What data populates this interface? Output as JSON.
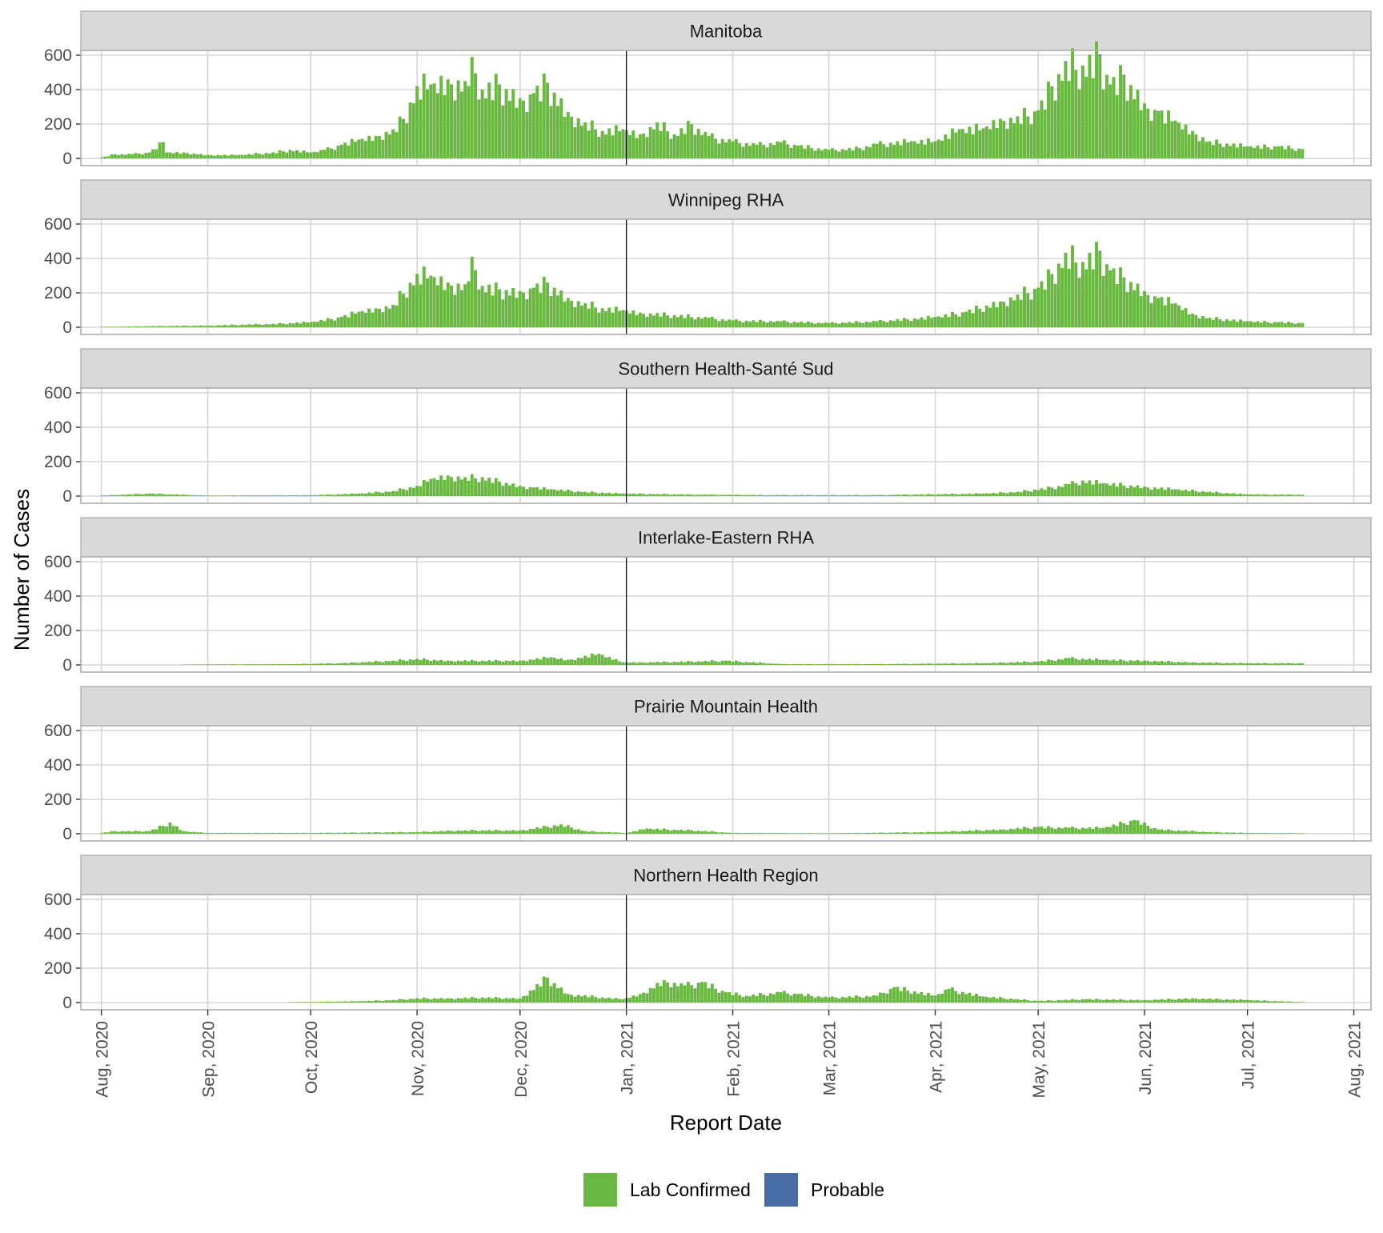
{
  "chart_data": {
    "type": "bar",
    "stacked": true,
    "xlabel": "Report Date",
    "ylabel": "Number of Cases",
    "ylim": [
      0,
      600
    ],
    "yticks": [
      0,
      200,
      400,
      600
    ],
    "x_range": [
      "2020-07-26",
      "2021-08-06"
    ],
    "x_ticks": [
      {
        "date": "2020-08-01",
        "label": "Aug, 2020"
      },
      {
        "date": "2020-09-01",
        "label": "Sep, 2020"
      },
      {
        "date": "2020-10-01",
        "label": "Oct, 2020"
      },
      {
        "date": "2020-11-01",
        "label": "Nov, 2020"
      },
      {
        "date": "2020-12-01",
        "label": "Dec, 2020"
      },
      {
        "date": "2021-01-01",
        "label": "Jan, 2021"
      },
      {
        "date": "2021-02-01",
        "label": "Feb, 2021"
      },
      {
        "date": "2021-03-01",
        "label": "Mar, 2021"
      },
      {
        "date": "2021-04-01",
        "label": "Apr, 2021"
      },
      {
        "date": "2021-05-01",
        "label": "May, 2021"
      },
      {
        "date": "2021-06-01",
        "label": "Jun, 2021"
      },
      {
        "date": "2021-07-01",
        "label": "Jul, 2021"
      },
      {
        "date": "2021-08-01",
        "label": "Aug, 2021"
      }
    ],
    "reference_line": "2021-01-01",
    "grid": true,
    "legend_position": "bottom",
    "series_styles": [
      {
        "name": "Lab Confirmed",
        "color": "#6ab842"
      },
      {
        "name": "Probable",
        "color": "#4a6da7"
      }
    ],
    "panels": [
      {
        "title": "Manitoba",
        "lab_confirmed": [
          [
            "2020-08-01",
            5
          ],
          [
            "2020-08-05",
            25
          ],
          [
            "2020-08-10",
            25
          ],
          [
            "2020-08-15",
            35
          ],
          [
            "2020-08-19",
            95
          ],
          [
            "2020-08-20",
            35
          ],
          [
            "2020-08-25",
            35
          ],
          [
            "2020-09-01",
            20
          ],
          [
            "2020-09-10",
            20
          ],
          [
            "2020-09-20",
            35
          ],
          [
            "2020-09-25",
            50
          ],
          [
            "2020-10-01",
            35
          ],
          [
            "2020-10-05",
            50
          ],
          [
            "2020-10-10",
            80
          ],
          [
            "2020-10-15",
            110
          ],
          [
            "2020-10-20",
            130
          ],
          [
            "2020-10-25",
            170
          ],
          [
            "2020-10-28",
            230
          ],
          [
            "2020-11-01",
            420
          ],
          [
            "2020-11-05",
            430
          ],
          [
            "2020-11-10",
            460
          ],
          [
            "2020-11-15",
            450
          ],
          [
            "2020-11-17",
            590
          ],
          [
            "2020-11-20",
            400
          ],
          [
            "2020-11-25",
            430
          ],
          [
            "2020-12-01",
            350
          ],
          [
            "2020-12-05",
            380
          ],
          [
            "2020-12-09",
            440
          ],
          [
            "2020-12-15",
            270
          ],
          [
            "2020-12-20",
            210
          ],
          [
            "2020-12-25",
            160
          ],
          [
            "2020-12-31",
            170
          ],
          [
            "2021-01-05",
            140
          ],
          [
            "2021-01-10",
            210
          ],
          [
            "2021-01-15",
            140
          ],
          [
            "2021-01-20",
            200
          ],
          [
            "2021-01-25",
            130
          ],
          [
            "2021-02-01",
            100
          ],
          [
            "2021-02-08",
            80
          ],
          [
            "2021-02-15",
            95
          ],
          [
            "2021-02-20",
            75
          ],
          [
            "2021-03-01",
            50
          ],
          [
            "2021-03-10",
            60
          ],
          [
            "2021-03-15",
            85
          ],
          [
            "2021-03-25",
            100
          ],
          [
            "2021-04-01",
            100
          ],
          [
            "2021-04-08",
            170
          ],
          [
            "2021-04-15",
            175
          ],
          [
            "2021-04-20",
            230
          ],
          [
            "2021-04-25",
            240
          ],
          [
            "2021-05-01",
            280
          ],
          [
            "2021-05-05",
            420
          ],
          [
            "2021-05-09",
            560
          ],
          [
            "2021-05-14",
            540
          ],
          [
            "2021-05-19",
            598
          ],
          [
            "2021-05-22",
            430
          ],
          [
            "2021-05-26",
            480
          ],
          [
            "2021-06-01",
            320
          ],
          [
            "2021-06-05",
            270
          ],
          [
            "2021-06-10",
            220
          ],
          [
            "2021-06-15",
            160
          ],
          [
            "2021-06-20",
            100
          ],
          [
            "2021-07-01",
            70
          ],
          [
            "2021-07-10",
            70
          ],
          [
            "2021-07-17",
            55
          ]
        ],
        "probable": [
          [
            "2021-05-19",
            6
          ],
          [
            "2021-05-09",
            5
          ],
          [
            "2021-05-26",
            5
          ],
          [
            "2021-04-25",
            4
          ],
          [
            "2021-06-05",
            4
          ]
        ]
      },
      {
        "title": "Winnipeg RHA",
        "lab_confirmed": [
          [
            "2020-08-01",
            2
          ],
          [
            "2020-08-15",
            6
          ],
          [
            "2020-09-01",
            10
          ],
          [
            "2020-09-20",
            20
          ],
          [
            "2020-10-01",
            30
          ],
          [
            "2020-10-10",
            60
          ],
          [
            "2020-10-15",
            90
          ],
          [
            "2020-10-20",
            110
          ],
          [
            "2020-10-25",
            130
          ],
          [
            "2020-11-01",
            310
          ],
          [
            "2020-11-05",
            300
          ],
          [
            "2020-11-10",
            260
          ],
          [
            "2020-11-15",
            250
          ],
          [
            "2020-11-17",
            410
          ],
          [
            "2020-11-20",
            240
          ],
          [
            "2020-11-25",
            220
          ],
          [
            "2020-12-01",
            210
          ],
          [
            "2020-12-05",
            230
          ],
          [
            "2020-12-09",
            260
          ],
          [
            "2020-12-15",
            170
          ],
          [
            "2020-12-20",
            140
          ],
          [
            "2020-12-25",
            110
          ],
          [
            "2020-12-31",
            100
          ],
          [
            "2021-01-05",
            85
          ],
          [
            "2021-01-15",
            70
          ],
          [
            "2021-01-25",
            55
          ],
          [
            "2021-02-01",
            40
          ],
          [
            "2021-02-15",
            35
          ],
          [
            "2021-03-01",
            25
          ],
          [
            "2021-03-15",
            35
          ],
          [
            "2021-04-01",
            60
          ],
          [
            "2021-04-10",
            90
          ],
          [
            "2021-04-20",
            150
          ],
          [
            "2021-04-25",
            190
          ],
          [
            "2021-05-01",
            230
          ],
          [
            "2021-05-05",
            310
          ],
          [
            "2021-05-09",
            430
          ],
          [
            "2021-05-14",
            380
          ],
          [
            "2021-05-19",
            440
          ],
          [
            "2021-05-22",
            330
          ],
          [
            "2021-05-26",
            290
          ],
          [
            "2021-06-01",
            210
          ],
          [
            "2021-06-05",
            170
          ],
          [
            "2021-06-10",
            140
          ],
          [
            "2021-06-15",
            80
          ],
          [
            "2021-06-20",
            55
          ],
          [
            "2021-07-01",
            35
          ],
          [
            "2021-07-10",
            30
          ],
          [
            "2021-07-17",
            25
          ]
        ],
        "probable": [
          [
            "2021-05-19",
            4
          ],
          [
            "2021-05-09",
            3
          ]
        ]
      },
      {
        "title": "Southern Health-Santé Sud",
        "lab_confirmed": [
          [
            "2020-08-01",
            3
          ],
          [
            "2020-08-15",
            15
          ],
          [
            "2020-09-01",
            3
          ],
          [
            "2020-10-01",
            5
          ],
          [
            "2020-10-15",
            15
          ],
          [
            "2020-10-25",
            30
          ],
          [
            "2020-11-01",
            60
          ],
          [
            "2020-11-05",
            100
          ],
          [
            "2020-11-10",
            120
          ],
          [
            "2020-11-15",
            110
          ],
          [
            "2020-11-20",
            110
          ],
          [
            "2020-11-25",
            85
          ],
          [
            "2020-12-01",
            60
          ],
          [
            "2020-12-05",
            50
          ],
          [
            "2020-12-10",
            40
          ],
          [
            "2020-12-20",
            25
          ],
          [
            "2020-12-31",
            15
          ],
          [
            "2021-01-10",
            12
          ],
          [
            "2021-01-25",
            8
          ],
          [
            "2021-02-15",
            6
          ],
          [
            "2021-03-15",
            6
          ],
          [
            "2021-04-15",
            15
          ],
          [
            "2021-04-25",
            25
          ],
          [
            "2021-05-05",
            50
          ],
          [
            "2021-05-10",
            70
          ],
          [
            "2021-05-14",
            90
          ],
          [
            "2021-05-20",
            75
          ],
          [
            "2021-06-01",
            55
          ],
          [
            "2021-06-10",
            40
          ],
          [
            "2021-06-20",
            25
          ],
          [
            "2021-07-01",
            10
          ],
          [
            "2021-07-17",
            8
          ]
        ],
        "probable": []
      },
      {
        "title": "Interlake-Eastern RHA",
        "lab_confirmed": [
          [
            "2020-08-25",
            2
          ],
          [
            "2020-09-25",
            5
          ],
          [
            "2020-10-10",
            10
          ],
          [
            "2020-10-25",
            25
          ],
          [
            "2020-11-01",
            35
          ],
          [
            "2020-11-10",
            25
          ],
          [
            "2020-11-20",
            25
          ],
          [
            "2020-12-01",
            25
          ],
          [
            "2020-12-10",
            45
          ],
          [
            "2020-12-15",
            30
          ],
          [
            "2020-12-24",
            65
          ],
          [
            "2020-12-31",
            15
          ],
          [
            "2021-01-05",
            15
          ],
          [
            "2021-01-20",
            20
          ],
          [
            "2021-01-30",
            25
          ],
          [
            "2021-02-15",
            5
          ],
          [
            "2021-03-15",
            5
          ],
          [
            "2021-04-15",
            10
          ],
          [
            "2021-05-01",
            20
          ],
          [
            "2021-05-10",
            40
          ],
          [
            "2021-05-20",
            30
          ],
          [
            "2021-06-01",
            25
          ],
          [
            "2021-06-15",
            15
          ],
          [
            "2021-07-01",
            10
          ],
          [
            "2021-07-17",
            10
          ]
        ],
        "probable": []
      },
      {
        "title": "Prairie Mountain Health",
        "lab_confirmed": [
          [
            "2020-08-01",
            5
          ],
          [
            "2020-08-05",
            15
          ],
          [
            "2020-08-15",
            15
          ],
          [
            "2020-08-21",
            65
          ],
          [
            "2020-08-25",
            15
          ],
          [
            "2020-09-01",
            5
          ],
          [
            "2020-10-01",
            5
          ],
          [
            "2020-11-01",
            10
          ],
          [
            "2020-11-15",
            20
          ],
          [
            "2020-12-01",
            20
          ],
          [
            "2020-12-13",
            55
          ],
          [
            "2020-12-20",
            15
          ],
          [
            "2021-01-01",
            5
          ],
          [
            "2021-01-07",
            30
          ],
          [
            "2021-01-20",
            20
          ],
          [
            "2021-02-01",
            5
          ],
          [
            "2021-03-01",
            3
          ],
          [
            "2021-04-01",
            10
          ],
          [
            "2021-04-20",
            25
          ],
          [
            "2021-05-01",
            40
          ],
          [
            "2021-05-10",
            35
          ],
          [
            "2021-05-20",
            35
          ],
          [
            "2021-05-29",
            80
          ],
          [
            "2021-06-05",
            25
          ],
          [
            "2021-06-20",
            10
          ],
          [
            "2021-07-01",
            5
          ],
          [
            "2021-07-17",
            3
          ]
        ],
        "probable": []
      },
      {
        "title": "Northern Health Region",
        "lab_confirmed": [
          [
            "2020-09-25",
            2
          ],
          [
            "2020-10-15",
            8
          ],
          [
            "2020-10-25",
            15
          ],
          [
            "2020-11-01",
            25
          ],
          [
            "2020-11-10",
            25
          ],
          [
            "2020-11-20",
            30
          ],
          [
            "2020-12-01",
            25
          ],
          [
            "2020-12-09",
            145
          ],
          [
            "2020-12-15",
            50
          ],
          [
            "2020-12-25",
            30
          ],
          [
            "2020-12-31",
            20
          ],
          [
            "2021-01-05",
            50
          ],
          [
            "2021-01-12",
            130
          ],
          [
            "2021-01-18",
            100
          ],
          [
            "2021-01-23",
            120
          ],
          [
            "2021-01-30",
            60
          ],
          [
            "2021-02-05",
            40
          ],
          [
            "2021-02-15",
            60
          ],
          [
            "2021-02-20",
            50
          ],
          [
            "2021-03-01",
            30
          ],
          [
            "2021-03-15",
            40
          ],
          [
            "2021-03-20",
            90
          ],
          [
            "2021-04-01",
            40
          ],
          [
            "2021-04-05",
            80
          ],
          [
            "2021-04-15",
            35
          ],
          [
            "2021-04-25",
            20
          ],
          [
            "2021-05-01",
            10
          ],
          [
            "2021-05-15",
            20
          ],
          [
            "2021-06-01",
            15
          ],
          [
            "2021-06-15",
            25
          ],
          [
            "2021-07-01",
            15
          ],
          [
            "2021-07-17",
            3
          ]
        ],
        "probable": []
      }
    ]
  },
  "legend": {
    "items": [
      {
        "label": "Lab Confirmed",
        "color": "#6ab842"
      },
      {
        "label": "Probable",
        "color": "#4a6da7"
      }
    ]
  }
}
